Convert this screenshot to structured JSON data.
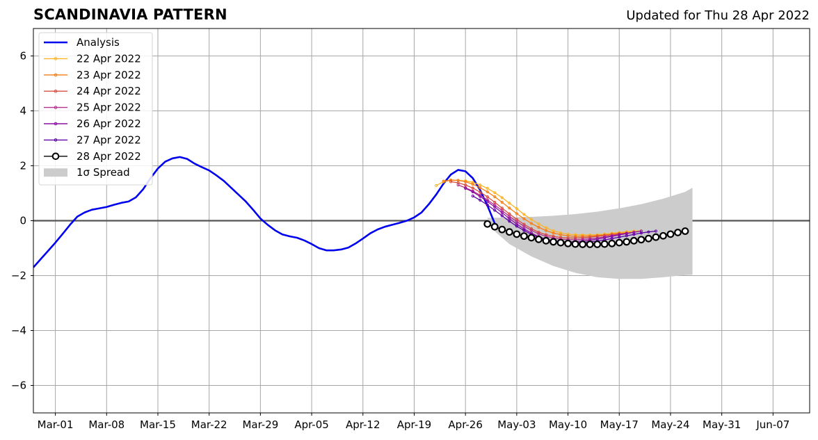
{
  "header": {
    "title": "SCANDINAVIA PATTERN",
    "updated": "Updated for Thu 28 Apr 2022"
  },
  "chart_data": {
    "type": "line",
    "x_axis": {
      "type": "date",
      "range": [
        "2022-02-26",
        "2022-06-12"
      ],
      "ticks": [
        "2022-03-01",
        "2022-03-08",
        "2022-03-15",
        "2022-03-22",
        "2022-03-29",
        "2022-04-05",
        "2022-04-12",
        "2022-04-19",
        "2022-04-26",
        "2022-05-03",
        "2022-05-10",
        "2022-05-17",
        "2022-05-24",
        "2022-05-31",
        "2022-06-07"
      ],
      "tick_labels": [
        "Mar-01",
        "Mar-08",
        "Mar-15",
        "Mar-22",
        "Mar-29",
        "Apr-05",
        "Apr-12",
        "Apr-19",
        "Apr-26",
        "May-03",
        "May-10",
        "May-17",
        "May-24",
        "May-31",
        "Jun-07"
      ]
    },
    "y_axis": {
      "range": [
        -7,
        7
      ],
      "ticks": [
        -6,
        -4,
        -2,
        0,
        2,
        4,
        6
      ],
      "tick_labels": [
        "−6",
        "−4",
        "−2",
        "0",
        "2",
        "4",
        "6"
      ]
    },
    "grid": true,
    "zero_line": true,
    "legend_position": "top-left",
    "legend_entries": [
      "Analysis",
      "22 Apr 2022",
      "23 Apr 2022",
      "24 Apr 2022",
      "25 Apr 2022",
      "26 Apr 2022",
      "27 Apr 2022",
      "28 Apr 2022",
      "1σ Spread"
    ],
    "analysis": {
      "name": "Analysis",
      "color": "#0000ee",
      "points": [
        [
          "2022-02-26",
          -1.7
        ],
        [
          "2022-02-27",
          -1.4
        ],
        [
          "2022-02-28",
          -1.1
        ],
        [
          "2022-03-01",
          -0.8
        ],
        [
          "2022-03-02",
          -0.48
        ],
        [
          "2022-03-03",
          -0.15
        ],
        [
          "2022-03-04",
          0.15
        ],
        [
          "2022-03-05",
          0.3
        ],
        [
          "2022-03-06",
          0.4
        ],
        [
          "2022-03-07",
          0.45
        ],
        [
          "2022-03-08",
          0.5
        ],
        [
          "2022-03-09",
          0.58
        ],
        [
          "2022-03-10",
          0.65
        ],
        [
          "2022-03-11",
          0.7
        ],
        [
          "2022-03-12",
          0.85
        ],
        [
          "2022-03-13",
          1.15
        ],
        [
          "2022-03-14",
          1.55
        ],
        [
          "2022-03-15",
          1.9
        ],
        [
          "2022-03-16",
          2.15
        ],
        [
          "2022-03-17",
          2.27
        ],
        [
          "2022-03-18",
          2.32
        ],
        [
          "2022-03-19",
          2.25
        ],
        [
          "2022-03-20",
          2.08
        ],
        [
          "2022-03-21",
          1.95
        ],
        [
          "2022-03-22",
          1.83
        ],
        [
          "2022-03-23",
          1.65
        ],
        [
          "2022-03-24",
          1.45
        ],
        [
          "2022-03-25",
          1.2
        ],
        [
          "2022-03-26",
          0.95
        ],
        [
          "2022-03-27",
          0.7
        ],
        [
          "2022-03-28",
          0.4
        ],
        [
          "2022-03-29",
          0.08
        ],
        [
          "2022-03-30",
          -0.15
        ],
        [
          "2022-03-31",
          -0.35
        ],
        [
          "2022-04-01",
          -0.5
        ],
        [
          "2022-04-02",
          -0.57
        ],
        [
          "2022-04-03",
          -0.62
        ],
        [
          "2022-04-04",
          -0.72
        ],
        [
          "2022-04-05",
          -0.85
        ],
        [
          "2022-04-06",
          -1.0
        ],
        [
          "2022-04-07",
          -1.08
        ],
        [
          "2022-04-08",
          -1.08
        ],
        [
          "2022-04-09",
          -1.05
        ],
        [
          "2022-04-10",
          -0.98
        ],
        [
          "2022-04-11",
          -0.83
        ],
        [
          "2022-04-12",
          -0.65
        ],
        [
          "2022-04-13",
          -0.46
        ],
        [
          "2022-04-14",
          -0.32
        ],
        [
          "2022-04-15",
          -0.22
        ],
        [
          "2022-04-16",
          -0.15
        ],
        [
          "2022-04-17",
          -0.08
        ],
        [
          "2022-04-18",
          0.0
        ],
        [
          "2022-04-19",
          0.12
        ],
        [
          "2022-04-20",
          0.3
        ],
        [
          "2022-04-21",
          0.6
        ],
        [
          "2022-04-22",
          0.95
        ],
        [
          "2022-04-23",
          1.35
        ],
        [
          "2022-04-24",
          1.68
        ],
        [
          "2022-04-25",
          1.85
        ],
        [
          "2022-04-26",
          1.8
        ],
        [
          "2022-04-27",
          1.55
        ],
        [
          "2022-04-28",
          1.12
        ],
        [
          "2022-04-29",
          0.55
        ],
        [
          "2022-04-30",
          -0.1
        ]
      ]
    },
    "forecasts": [
      {
        "name": "22 Apr 2022",
        "color": "#fbb324",
        "start": "2022-04-22",
        "values": [
          1.28,
          1.42,
          1.47,
          1.47,
          1.45,
          1.4,
          1.3,
          1.18,
          1.02,
          0.84,
          0.64,
          0.44,
          0.23,
          0.05,
          -0.12,
          -0.26,
          -0.37,
          -0.44,
          -0.49,
          -0.51,
          -0.52,
          -0.52,
          -0.51,
          -0.49,
          -0.46,
          -0.43,
          -0.4,
          -0.38,
          -0.37
        ]
      },
      {
        "name": "23 Apr 2022",
        "color": "#f57d15",
        "start": "2022-04-23",
        "values": [
          1.44,
          1.48,
          1.47,
          1.42,
          1.33,
          1.2,
          1.05,
          0.87,
          0.67,
          0.46,
          0.26,
          0.07,
          -0.1,
          -0.24,
          -0.36,
          -0.45,
          -0.51,
          -0.55,
          -0.57,
          -0.57,
          -0.56,
          -0.54,
          -0.52,
          -0.49,
          -0.46,
          -0.44,
          -0.42
        ]
      },
      {
        "name": "24 Apr 2022",
        "color": "#d84c3e",
        "start": "2022-04-24",
        "values": [
          1.42,
          1.38,
          1.3,
          1.19,
          1.04,
          0.87,
          0.67,
          0.46,
          0.25,
          0.05,
          -0.13,
          -0.29,
          -0.42,
          -0.51,
          -0.57,
          -0.61,
          -0.63,
          -0.63,
          -0.62,
          -0.6,
          -0.57,
          -0.54,
          -0.51,
          -0.48,
          -0.46
        ]
      },
      {
        "name": "25 Apr 2022",
        "color": "#b52f8c",
        "start": "2022-04-25",
        "values": [
          1.3,
          1.2,
          1.08,
          0.93,
          0.76,
          0.57,
          0.37,
          0.16,
          -0.03,
          -0.2,
          -0.35,
          -0.48,
          -0.57,
          -0.63,
          -0.67,
          -0.69,
          -0.69,
          -0.68,
          -0.66,
          -0.63,
          -0.59,
          -0.55,
          -0.5,
          -0.46
        ]
      },
      {
        "name": "26 Apr 2022",
        "color": "#8a0da2",
        "start": "2022-04-26",
        "values": [
          1.18,
          1.05,
          0.88,
          0.7,
          0.5,
          0.29,
          0.08,
          -0.12,
          -0.3,
          -0.45,
          -0.58,
          -0.67,
          -0.73,
          -0.76,
          -0.77,
          -0.76,
          -0.74,
          -0.71,
          -0.67,
          -0.62,
          -0.57,
          -0.52,
          -0.47,
          -0.42,
          -0.38
        ]
      },
      {
        "name": "27 Apr 2022",
        "color": "#5c01a5",
        "start": "2022-04-27",
        "values": [
          0.9,
          0.75,
          0.57,
          0.38,
          0.18,
          -0.02,
          -0.2,
          -0.36,
          -0.5,
          -0.61,
          -0.69,
          -0.75,
          -0.78,
          -0.8,
          -0.8,
          -0.79,
          -0.77,
          -0.74,
          -0.7,
          -0.65,
          -0.6,
          -0.55,
          -0.5,
          -0.45,
          -0.41,
          -0.38
        ]
      },
      {
        "name": "28 Apr 2022",
        "color": "#000000",
        "start": "2022-04-29",
        "values": [
          -0.12,
          -0.22,
          -0.32,
          -0.41,
          -0.49,
          -0.56,
          -0.62,
          -0.68,
          -0.73,
          -0.77,
          -0.8,
          -0.83,
          -0.85,
          -0.86,
          -0.86,
          -0.86,
          -0.85,
          -0.83,
          -0.8,
          -0.77,
          -0.73,
          -0.69,
          -0.65,
          -0.6,
          -0.55,
          -0.49,
          -0.43,
          -0.38
        ]
      }
    ],
    "spread": {
      "name": "1σ Spread",
      "color": "#cccccc",
      "dates": [
        "2022-04-29",
        "2022-05-02",
        "2022-05-05",
        "2022-05-08",
        "2022-05-11",
        "2022-05-14",
        "2022-05-17",
        "2022-05-20",
        "2022-05-23",
        "2022-05-26",
        "2022-05-27"
      ],
      "upper": [
        0.1,
        0.12,
        0.14,
        0.18,
        0.24,
        0.33,
        0.45,
        0.6,
        0.8,
        1.05,
        1.2
      ],
      "lower": [
        -0.15,
        -0.85,
        -1.3,
        -1.65,
        -1.9,
        -2.06,
        -2.12,
        -2.12,
        -2.06,
        -1.98,
        -1.97
      ]
    }
  }
}
